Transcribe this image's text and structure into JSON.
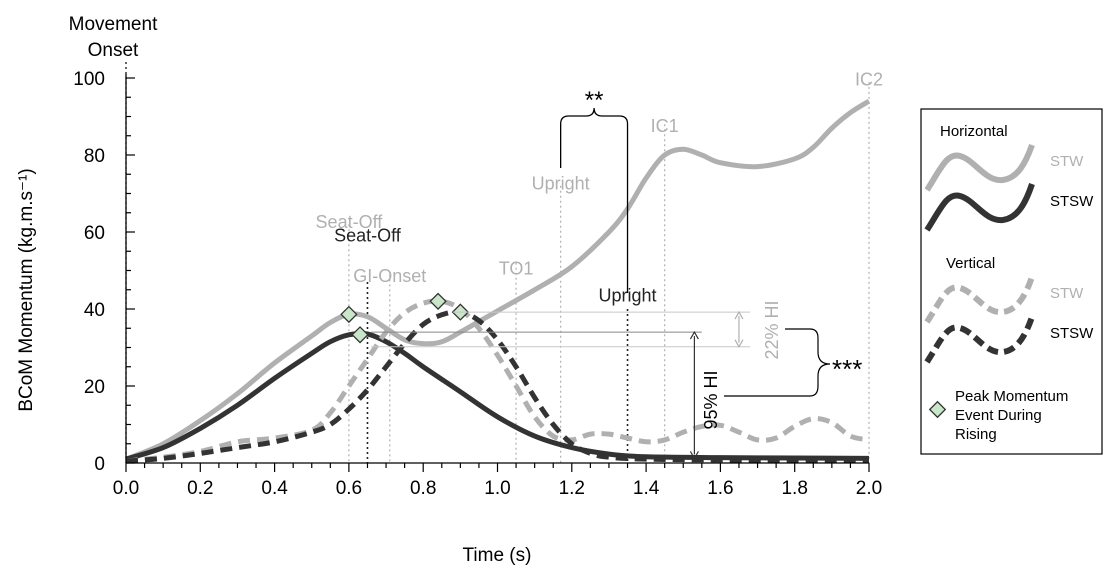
{
  "chart_data": {
    "type": "line",
    "title": "",
    "xlabel": "Time (s)",
    "ylabel": "BCoM Momentum (kg.m.s⁻¹)",
    "xlim": [
      0,
      2
    ],
    "ylim": [
      0,
      100
    ],
    "x_ticks": [
      "0.0",
      "0.2",
      "0.4",
      "0.6",
      "0.8",
      "1.0",
      "1.2",
      "1.4",
      "1.6",
      "1.8",
      "2.0"
    ],
    "y_ticks": [
      "0",
      "20",
      "40",
      "60",
      "80",
      "100"
    ],
    "x_minor_step": 0.05,
    "y_minor_step": 5,
    "movement_onset": {
      "label_line1": "Movement",
      "label_line2": "Onset",
      "x": 0
    },
    "series": [
      {
        "name": "STW",
        "group": "Horizontal",
        "color": "#b0b0b0",
        "style": "solid",
        "points": [
          [
            0,
            1
          ],
          [
            0.1,
            5
          ],
          [
            0.2,
            11
          ],
          [
            0.3,
            18
          ],
          [
            0.4,
            26
          ],
          [
            0.5,
            33
          ],
          [
            0.55,
            36.5
          ],
          [
            0.6,
            38.6
          ],
          [
            0.65,
            38
          ],
          [
            0.7,
            35
          ],
          [
            0.75,
            32
          ],
          [
            0.8,
            31
          ],
          [
            0.85,
            31.5
          ],
          [
            0.9,
            34
          ],
          [
            1.0,
            39.5
          ],
          [
            1.1,
            45
          ],
          [
            1.2,
            51
          ],
          [
            1.3,
            60
          ],
          [
            1.35,
            66
          ],
          [
            1.4,
            74
          ],
          [
            1.45,
            80
          ],
          [
            1.5,
            81.5
          ],
          [
            1.55,
            80
          ],
          [
            1.6,
            78
          ],
          [
            1.7,
            77
          ],
          [
            1.8,
            79
          ],
          [
            1.85,
            82
          ],
          [
            1.9,
            87
          ],
          [
            1.95,
            91
          ],
          [
            2.0,
            94
          ]
        ]
      },
      {
        "name": "STSW",
        "group": "Horizontal",
        "color": "#333333",
        "style": "solid",
        "points": [
          [
            0,
            1
          ],
          [
            0.1,
            4
          ],
          [
            0.2,
            9
          ],
          [
            0.3,
            15
          ],
          [
            0.4,
            22
          ],
          [
            0.5,
            28.5
          ],
          [
            0.55,
            31.5
          ],
          [
            0.6,
            33.3
          ],
          [
            0.65,
            33.5
          ],
          [
            0.7,
            31.5
          ],
          [
            0.75,
            28.5
          ],
          [
            0.8,
            25
          ],
          [
            0.9,
            18.5
          ],
          [
            1.0,
            12
          ],
          [
            1.1,
            7
          ],
          [
            1.2,
            4
          ],
          [
            1.3,
            2.3
          ],
          [
            1.4,
            1.6
          ],
          [
            1.6,
            1.4
          ],
          [
            1.8,
            1.3
          ],
          [
            2.0,
            1.2
          ]
        ]
      },
      {
        "name": "STW",
        "group": "Vertical",
        "color": "#b0b0b0",
        "style": "dashed",
        "points": [
          [
            0,
            0.5
          ],
          [
            0.1,
            1.5
          ],
          [
            0.2,
            3
          ],
          [
            0.3,
            5.5
          ],
          [
            0.4,
            6.5
          ],
          [
            0.5,
            8.5
          ],
          [
            0.55,
            13
          ],
          [
            0.6,
            20
          ],
          [
            0.65,
            27
          ],
          [
            0.7,
            34
          ],
          [
            0.75,
            39
          ],
          [
            0.8,
            41.5
          ],
          [
            0.85,
            42
          ],
          [
            0.9,
            40
          ],
          [
            0.95,
            35
          ],
          [
            1.0,
            28
          ],
          [
            1.05,
            20
          ],
          [
            1.1,
            12
          ],
          [
            1.15,
            7
          ],
          [
            1.2,
            6
          ],
          [
            1.25,
            7.5
          ],
          [
            1.3,
            7.5
          ],
          [
            1.35,
            6.5
          ],
          [
            1.4,
            5.5
          ],
          [
            1.45,
            6
          ],
          [
            1.5,
            8
          ],
          [
            1.55,
            9.5
          ],
          [
            1.6,
            9.8
          ],
          [
            1.65,
            8
          ],
          [
            1.7,
            6
          ],
          [
            1.75,
            6.5
          ],
          [
            1.8,
            9.5
          ],
          [
            1.85,
            11.5
          ],
          [
            1.9,
            10.5
          ],
          [
            1.95,
            7
          ],
          [
            2.0,
            6
          ]
        ]
      },
      {
        "name": "STSW",
        "group": "Vertical",
        "color": "#333333",
        "style": "dashed",
        "points": [
          [
            0,
            0.5
          ],
          [
            0.1,
            1.2
          ],
          [
            0.2,
            2.5
          ],
          [
            0.3,
            4
          ],
          [
            0.4,
            5.5
          ],
          [
            0.5,
            8
          ],
          [
            0.55,
            10
          ],
          [
            0.6,
            14
          ],
          [
            0.65,
            19
          ],
          [
            0.7,
            25
          ],
          [
            0.75,
            31
          ],
          [
            0.8,
            36
          ],
          [
            0.85,
            38.5
          ],
          [
            0.9,
            39.2
          ],
          [
            0.95,
            37
          ],
          [
            1.0,
            32
          ],
          [
            1.05,
            25
          ],
          [
            1.1,
            17
          ],
          [
            1.15,
            10
          ],
          [
            1.2,
            5
          ],
          [
            1.25,
            2.5
          ],
          [
            1.3,
            1.5
          ],
          [
            1.4,
            1
          ],
          [
            1.6,
            0.8
          ],
          [
            1.8,
            0.7
          ],
          [
            2.0,
            0.6
          ]
        ]
      }
    ],
    "peak_markers": [
      {
        "series": "Horizontal STW",
        "x": 0.6,
        "y": 38.6
      },
      {
        "series": "Horizontal STSW",
        "x": 0.63,
        "y": 33.3
      },
      {
        "series": "Vertical STW",
        "x": 0.84,
        "y": 42
      },
      {
        "series": "Vertical STSW",
        "x": 0.9,
        "y": 39.2
      }
    ],
    "events": [
      {
        "label": "Seat-Off",
        "x": 0.6,
        "label_y": 61,
        "color": "#b0b0b0",
        "line_top": 62
      },
      {
        "label": "Seat-Off",
        "x": 0.65,
        "label_y": 57.5,
        "color": "#222222",
        "line_top": 47
      },
      {
        "label": "GI-Onset",
        "x": 0.71,
        "label_y": 47,
        "color": "#b0b0b0",
        "line_top": 49
      },
      {
        "label": "TO1",
        "x": 1.05,
        "label_y": 49,
        "color": "#b0b0b0",
        "line_top": 52
      },
      {
        "label": "Upright",
        "x": 1.17,
        "label_y": 71,
        "color": "#b0b0b0",
        "line_top": 72
      },
      {
        "label": "Upright",
        "x": 1.35,
        "label_y": 42,
        "color": "#222222",
        "line_top": 40
      },
      {
        "label": "IC1",
        "x": 1.45,
        "label_y": 86,
        "color": "#b0b0b0",
        "line_top": 88
      },
      {
        "label": "IC2",
        "x": 2.0,
        "label_y": 98,
        "color": "#b0b0b0",
        "line_top": 99
      }
    ],
    "annotations": {
      "upright_difference": "**",
      "hi_difference": "***",
      "hi_vertical": "22% HI",
      "hi_horizontal": "95% HI"
    },
    "legend": {
      "placement": "right",
      "horizontal_title": "Horizontal",
      "vertical_title": "Vertical",
      "stw": "STW",
      "stsw": "STSW",
      "peak_line1": "Peak Momentum",
      "peak_line2": "Event During",
      "peak_line3": "Rising"
    },
    "colors": {
      "light": "#b0b0b0",
      "dark": "#333333",
      "marker_fill": "#c9e6c9"
    }
  }
}
